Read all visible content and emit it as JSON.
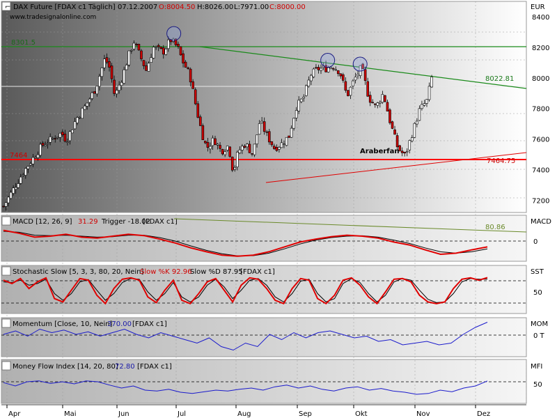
{
  "chart_data": [
    {
      "panel": "price",
      "type": "candlestick",
      "header": {
        "instrument": "DAX Future [FDAX c1",
        "frequency": "Täglich]",
        "date": "07.12.2007",
        "open_label": "O:8004.50",
        "high_label": "H:8026.00",
        "low_label": "L:7971.00",
        "close_label": "C:8000.00"
      },
      "watermark": "www.tradesignalonline.com",
      "currency_label": "EUR",
      "y_ticks": [
        "8400",
        "8200",
        "8000",
        "7800",
        "7600",
        "7400",
        "7200"
      ],
      "ylim": [
        7120,
        8500
      ],
      "annotations": {
        "resistance_label": "8301.5",
        "support_left_label": "7464",
        "support_right_label": "7464.75",
        "last_value_label": "8022.81",
        "pattern_label": "Araberfan"
      },
      "levels": {
        "resistance": 8301.5,
        "support": 7464.75,
        "last": 8022.81
      },
      "downtrend_line": [
        {
          "x": 0.352,
          "y": 8301.5
        },
        {
          "x": 1.0,
          "y": 7990
        }
      ],
      "uptrend_line": [
        {
          "x": 0.47,
          "y": 7310
        },
        {
          "x": 1.0,
          "y": 7520
        }
      ],
      "circled_highs": [
        {
          "x": 0.352,
          "y": 8290
        },
        {
          "x": 0.67,
          "y": 8115
        },
        {
          "x": 0.737,
          "y": 8090
        }
      ],
      "close_series": [
        {
          "x": 0.0,
          "y": 7160
        },
        {
          "x": 0.02,
          "y": 7270
        },
        {
          "x": 0.04,
          "y": 7380
        },
        {
          "x": 0.06,
          "y": 7470
        },
        {
          "x": 0.08,
          "y": 7560
        },
        {
          "x": 0.1,
          "y": 7600
        },
        {
          "x": 0.12,
          "y": 7640
        },
        {
          "x": 0.13,
          "y": 7590
        },
        {
          "x": 0.15,
          "y": 7730
        },
        {
          "x": 0.17,
          "y": 7820
        },
        {
          "x": 0.19,
          "y": 7930
        },
        {
          "x": 0.21,
          "y": 8130
        },
        {
          "x": 0.22,
          "y": 8060
        },
        {
          "x": 0.23,
          "y": 7880
        },
        {
          "x": 0.245,
          "y": 8000
        },
        {
          "x": 0.26,
          "y": 8160
        },
        {
          "x": 0.27,
          "y": 8240
        },
        {
          "x": 0.28,
          "y": 8160
        },
        {
          "x": 0.295,
          "y": 8050
        },
        {
          "x": 0.31,
          "y": 8200
        },
        {
          "x": 0.33,
          "y": 8170
        },
        {
          "x": 0.345,
          "y": 8250
        },
        {
          "x": 0.36,
          "y": 8200
        },
        {
          "x": 0.37,
          "y": 8110
        },
        {
          "x": 0.385,
          "y": 8020
        },
        {
          "x": 0.4,
          "y": 7780
        },
        {
          "x": 0.41,
          "y": 7640
        },
        {
          "x": 0.42,
          "y": 7540
        },
        {
          "x": 0.435,
          "y": 7600
        },
        {
          "x": 0.45,
          "y": 7520
        },
        {
          "x": 0.465,
          "y": 7560
        },
        {
          "x": 0.475,
          "y": 7380
        },
        {
          "x": 0.485,
          "y": 7520
        },
        {
          "x": 0.5,
          "y": 7570
        },
        {
          "x": 0.515,
          "y": 7500
        },
        {
          "x": 0.53,
          "y": 7720
        },
        {
          "x": 0.545,
          "y": 7620
        },
        {
          "x": 0.56,
          "y": 7540
        },
        {
          "x": 0.575,
          "y": 7570
        },
        {
          "x": 0.59,
          "y": 7620
        },
        {
          "x": 0.605,
          "y": 7810
        },
        {
          "x": 0.62,
          "y": 7870
        },
        {
          "x": 0.635,
          "y": 8020
        },
        {
          "x": 0.65,
          "y": 8060
        },
        {
          "x": 0.665,
          "y": 8060
        },
        {
          "x": 0.68,
          "y": 8080
        },
        {
          "x": 0.695,
          "y": 8040
        },
        {
          "x": 0.71,
          "y": 7880
        },
        {
          "x": 0.725,
          "y": 7990
        },
        {
          "x": 0.74,
          "y": 8070
        },
        {
          "x": 0.755,
          "y": 7870
        },
        {
          "x": 0.77,
          "y": 7810
        },
        {
          "x": 0.785,
          "y": 7900
        },
        {
          "x": 0.8,
          "y": 7700
        },
        {
          "x": 0.815,
          "y": 7540
        },
        {
          "x": 0.83,
          "y": 7490
        },
        {
          "x": 0.845,
          "y": 7640
        },
        {
          "x": 0.86,
          "y": 7790
        },
        {
          "x": 0.875,
          "y": 7850
        },
        {
          "x": 0.885,
          "y": 8000
        }
      ],
      "x_labels": [
        "Apr",
        "Mai",
        "Jun",
        "Jul",
        "Aug",
        "Sep",
        "Okt",
        "Nov",
        "Dez"
      ]
    },
    {
      "panel": "macd",
      "type": "line",
      "title": "MACD [12, 26, 9]",
      "value_label": "31.29",
      "trigger_label": "Trigger -18.02",
      "suffix": "[FDAX c1]",
      "axis_label": "MACD",
      "y_ticks": [
        "0"
      ],
      "annotation_label": "80.86",
      "macd_series": [
        0.55,
        0.4,
        0.2,
        0.25,
        0.35,
        0.2,
        0.15,
        0.25,
        0.35,
        0.28,
        0.1,
        -0.1,
        -0.35,
        -0.55,
        -0.72,
        -0.78,
        -0.72,
        -0.55,
        -0.3,
        -0.05,
        0.1,
        0.22,
        0.3,
        0.25,
        0.15,
        -0.05,
        -0.2,
        -0.45,
        -0.68,
        -0.62,
        -0.45,
        -0.3
      ],
      "trigger_series": [
        0.5,
        0.45,
        0.3,
        0.28,
        0.3,
        0.25,
        0.2,
        0.22,
        0.3,
        0.3,
        0.18,
        0.0,
        -0.25,
        -0.48,
        -0.65,
        -0.76,
        -0.75,
        -0.62,
        -0.4,
        -0.15,
        0.05,
        0.18,
        0.25,
        0.27,
        0.2,
        0.05,
        -0.12,
        -0.35,
        -0.55,
        -0.62,
        -0.55,
        -0.4
      ]
    },
    {
      "panel": "stochastic",
      "type": "line",
      "title": "Stochastic Slow [5, 3, 3, 80, 20, Nein]",
      "k_label": "Slow %K 92.96",
      "d_label": "Slow %D 87.95",
      "suffix": "[FDAX c1]",
      "axis_label": "SST",
      "y_ticks": [
        "50"
      ],
      "levels": [
        80,
        20
      ],
      "k_series": [
        85,
        75,
        90,
        60,
        80,
        92,
        30,
        20,
        55,
        90,
        85,
        40,
        15,
        60,
        88,
        92,
        85,
        35,
        18,
        55,
        85,
        25,
        15,
        45,
        80,
        90,
        55,
        20,
        70,
        92,
        88,
        60,
        25,
        15,
        60,
        90,
        85,
        30,
        15,
        40,
        85,
        92,
        70,
        35,
        15,
        50,
        88,
        90,
        80,
        40,
        20,
        15,
        20,
        60,
        88,
        92,
        85,
        93
      ],
      "d_series": [
        80,
        78,
        85,
        70,
        75,
        88,
        45,
        25,
        45,
        80,
        87,
        55,
        25,
        45,
        78,
        90,
        88,
        50,
        25,
        45,
        78,
        35,
        20,
        35,
        70,
        88,
        65,
        30,
        55,
        85,
        90,
        70,
        35,
        20,
        45,
        82,
        88,
        45,
        20,
        30,
        75,
        90,
        78,
        45,
        20,
        40,
        80,
        90,
        85,
        55,
        28,
        18,
        20,
        45,
        80,
        90,
        88,
        88
      ]
    },
    {
      "panel": "momentum",
      "type": "line",
      "title": "Momentum [Close, 10, Nein]",
      "value_label": "370.00",
      "suffix": "[FDAX c1]",
      "axis_label": "MOM",
      "y_ticks": [
        "0 T"
      ],
      "series": [
        0.2,
        0.4,
        0.1,
        0.5,
        0.3,
        0.45,
        0.2,
        0.35,
        0.1,
        0.3,
        0.5,
        0.2,
        0.0,
        0.3,
        0.1,
        -0.1,
        -0.3,
        0.0,
        -0.5,
        -0.7,
        -0.3,
        -0.5,
        0.2,
        -0.1,
        0.3,
        0.0,
        0.3,
        0.4,
        0.2,
        0.0,
        0.1,
        -0.2,
        -0.1,
        -0.4,
        -0.3,
        -0.2,
        -0.4,
        -0.3,
        0.2,
        0.6,
        0.9
      ]
    },
    {
      "panel": "mfi",
      "type": "line",
      "title": "Money Flow Index [14, 20, 80]",
      "value_label": "72.80",
      "suffix": "[FDAX c1]",
      "axis_label": "MFI",
      "y_ticks": [
        "50"
      ],
      "series": [
        68,
        60,
        70,
        72,
        66,
        70,
        65,
        72,
        70,
        62,
        55,
        60,
        50,
        48,
        52,
        45,
        42,
        46,
        50,
        48,
        52,
        55,
        50,
        58,
        62,
        55,
        60,
        52,
        48,
        55,
        58,
        50,
        54,
        48,
        45,
        40,
        42,
        50,
        46,
        55,
        60,
        72
      ]
    }
  ]
}
